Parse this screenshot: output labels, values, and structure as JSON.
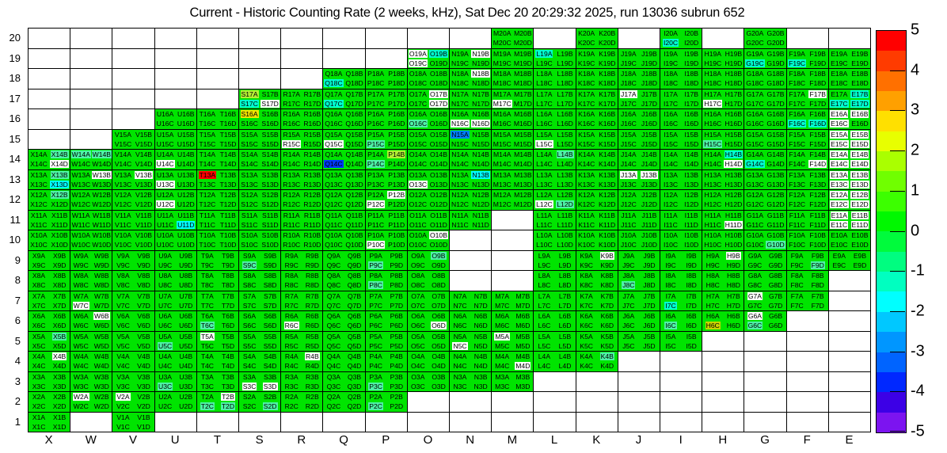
{
  "title": "Current - Historic Counting Rate (2 weeks, kHz), Sat Dec 20 20:29:32 2025, run 13036 subrun 652",
  "chart_data": {
    "type": "heatmap",
    "title": "Current - Historic Counting Rate (2 weeks, kHz), Sat Dec 20 20:29:32 2025, run 13036 subrun 652",
    "xlabel": "",
    "ylabel": "",
    "value_scale": {
      "min": -5,
      "max": 5,
      "units": "kHz difference"
    },
    "columns": [
      "X",
      "W",
      "V",
      "U",
      "T",
      "S",
      "R",
      "Q",
      "P",
      "O",
      "N",
      "M",
      "L",
      "K",
      "J",
      "I",
      "H",
      "G",
      "F",
      "E"
    ],
    "suffixes": [
      "A",
      "B",
      "C",
      "D"
    ],
    "y_tick_labels": [
      "20",
      "19",
      "18",
      "17",
      "16",
      "15",
      "14",
      "13",
      "12",
      "11",
      "10",
      "9",
      "8",
      "7",
      "6",
      "5",
      "4",
      "3",
      "2",
      "1"
    ],
    "rows": [
      {
        "n": 20,
        "cols": [
          "M",
          "K",
          "I",
          "G"
        ]
      },
      {
        "n": 19,
        "cols": [
          "O",
          "N",
          "M",
          "L",
          "K",
          "J",
          "I",
          "H",
          "G",
          "F",
          "E"
        ]
      },
      {
        "n": 18,
        "cols": [
          "Q",
          "P",
          "O",
          "N",
          "M",
          "L",
          "K",
          "J",
          "I",
          "H",
          "G",
          "F",
          "E"
        ]
      },
      {
        "n": 17,
        "cols": [
          "S",
          "R",
          "Q",
          "P",
          "O",
          "N",
          "M",
          "L",
          "K",
          "J",
          "I",
          "H",
          "G",
          "F",
          "E"
        ]
      },
      {
        "n": 16,
        "cols": [
          "U",
          "T",
          "S",
          "R",
          "Q",
          "P",
          "O",
          "N",
          "M",
          "L",
          "K",
          "J",
          "I",
          "H",
          "G",
          "F",
          "E"
        ]
      },
      {
        "n": 15,
        "cols": [
          "V",
          "U",
          "T",
          "S",
          "R",
          "Q",
          "P",
          "O",
          "N",
          "M",
          "L",
          "K",
          "J",
          "I",
          "H",
          "G",
          "F",
          "E"
        ]
      },
      {
        "n": 14,
        "cols": [
          "X",
          "W",
          "V",
          "U",
          "T",
          "S",
          "R",
          "Q",
          "P",
          "O",
          "N",
          "M",
          "L",
          "K",
          "J",
          "I",
          "H",
          "G",
          "F",
          "E"
        ]
      },
      {
        "n": 13,
        "cols": [
          "X",
          "W",
          "V",
          "U",
          "T",
          "S",
          "R",
          "Q",
          "P",
          "O",
          "N",
          "M",
          "L",
          "K",
          "J",
          "I",
          "H",
          "G",
          "F",
          "E"
        ]
      },
      {
        "n": 12,
        "cols": [
          "X",
          "W",
          "V",
          "U",
          "T",
          "S",
          "R",
          "Q",
          "P",
          "O",
          "N",
          "M",
          "L",
          "K",
          "J",
          "I",
          "H",
          "G",
          "F",
          "E"
        ]
      },
      {
        "n": 11,
        "cols": [
          "X",
          "W",
          "V",
          "U",
          "T",
          "S",
          "R",
          "Q",
          "P",
          "O",
          "N",
          "L",
          "K",
          "J",
          "I",
          "H",
          "G",
          "F",
          "E"
        ]
      },
      {
        "n": 10,
        "cols": [
          "X",
          "W",
          "V",
          "U",
          "T",
          "S",
          "R",
          "Q",
          "P",
          "O",
          "L",
          "K",
          "J",
          "I",
          "H",
          "G",
          "F",
          "E"
        ]
      },
      {
        "n": 9,
        "cols": [
          "X",
          "W",
          "V",
          "U",
          "T",
          "S",
          "R",
          "Q",
          "P",
          "O",
          "L",
          "K",
          "J",
          "I",
          "H",
          "G",
          "F",
          "E"
        ]
      },
      {
        "n": 8,
        "cols": [
          "X",
          "W",
          "V",
          "U",
          "T",
          "S",
          "R",
          "Q",
          "P",
          "O",
          "L",
          "K",
          "J",
          "I",
          "H",
          "G",
          "F"
        ]
      },
      {
        "n": 7,
        "cols": [
          "X",
          "W",
          "V",
          "U",
          "T",
          "S",
          "R",
          "Q",
          "P",
          "O",
          "N",
          "M",
          "L",
          "K",
          "J",
          "I",
          "H",
          "G",
          "F"
        ]
      },
      {
        "n": 6,
        "cols": [
          "X",
          "W",
          "V",
          "U",
          "T",
          "S",
          "R",
          "Q",
          "P",
          "O",
          "N",
          "M",
          "L",
          "K",
          "J",
          "I",
          "H",
          "G"
        ]
      },
      {
        "n": 5,
        "cols": [
          "X",
          "W",
          "V",
          "U",
          "T",
          "S",
          "R",
          "Q",
          "P",
          "O",
          "N",
          "M",
          "L",
          "K",
          "J",
          "I"
        ]
      },
      {
        "n": 4,
        "cols": [
          "X",
          "W",
          "V",
          "U",
          "T",
          "S",
          "R",
          "Q",
          "P",
          "O",
          "N",
          "M",
          "L",
          "K"
        ]
      },
      {
        "n": 3,
        "cols": [
          "X",
          "W",
          "V",
          "U",
          "T",
          "S",
          "R",
          "Q",
          "P",
          "O",
          "N",
          "M"
        ]
      },
      {
        "n": 2,
        "cols": [
          "X",
          "W",
          "V",
          "U",
          "T",
          "S",
          "R",
          "Q",
          "P"
        ]
      },
      {
        "n": 1,
        "cols": [
          "X",
          "V"
        ]
      }
    ],
    "palette": {
      "g": "#00E400",
      "w": "#FFFFFF",
      "t": "#4DF2A6",
      "c": "#00FFFF",
      "T": "#00FFD0",
      "y": "#EFE400",
      "o": "#C8D400",
      "Y": "#B2EE33",
      "r": "#FF0000",
      "b": "#0080FF",
      "B": "#0038FF"
    },
    "overrides": {
      "S17D": "w",
      "O19A": "w",
      "O19C": "w",
      "N19B": "w",
      "N18B": "w",
      "O17B": "w",
      "O17D": "w",
      "M17C": "w",
      "J17A": "w",
      "H17C": "w",
      "F17B": "w",
      "N16C": "w",
      "N16D": "w",
      "E16A": "w",
      "E16B": "w",
      "E16C": "w",
      "R15C": "w",
      "Q15C": "w",
      "L15C": "w",
      "E15A": "w",
      "E15B": "w",
      "E15C": "w",
      "E15D": "w",
      "X14D": "w",
      "U14C": "w",
      "H14D": "w",
      "F14D": "w",
      "E14A": "w",
      "E14B": "w",
      "E14C": "w",
      "E14D": "w",
      "W13B": "w",
      "V13B": "w",
      "U13C": "w",
      "O13C": "w",
      "J13A": "w",
      "J13B": "w",
      "E13A": "w",
      "E13B": "w",
      "E13C": "w",
      "E13D": "w",
      "P12B": "w",
      "P12C": "w",
      "U12C": "w",
      "L12C": "w",
      "E12A": "w",
      "E12B": "w",
      "E12C": "w",
      "E12D": "w",
      "H11D": "w",
      "E11A": "w",
      "E11B": "w",
      "E11C": "w",
      "E11D": "w",
      "O10B": "w",
      "P10C": "w",
      "K9B": "w",
      "H9B": "w",
      "W7C": "w",
      "G7A": "w",
      "W6B": "w",
      "R6C": "w",
      "O6D": "w",
      "G6A": "w",
      "T5A": "w",
      "N5C": "w",
      "M5A": "w",
      "X4B": "w",
      "R4B": "w",
      "M4D": "w",
      "S3C": "w",
      "S3D": "w",
      "W2A": "w",
      "V2A": "w",
      "T2B": "w",
      "X13D": "c",
      "U11D": "c",
      "N13B": "c",
      "S17C": "T",
      "Q18C": "T",
      "Q17C": "T",
      "L19A": "T",
      "O19B": "T",
      "I20C": "T",
      "G19C": "T",
      "F19C": "T",
      "E17B": "T",
      "E17C": "T",
      "E17D": "T",
      "F16C": "T",
      "F16D": "T",
      "H14B": "T",
      "G14C": "T",
      "I7C": "T",
      "X14B": "t",
      "W14A": "t",
      "W14B": "t",
      "X13B": "t",
      "X12B": "t",
      "L14B": "t",
      "P14C": "t",
      "P15C": "t",
      "H15C": "t",
      "O16C": "t",
      "L12D": "t",
      "S9C": "t",
      "P9C": "t",
      "O9B": "t",
      "P8C": "t",
      "J8C": "t",
      "G10D": "t",
      "F9D": "t",
      "T6C": "t",
      "I6C": "t",
      "G6C": "t",
      "U5C": "t",
      "X5B": "t",
      "K4B": "t",
      "U3C": "t",
      "P3C": "t",
      "T2C": "t",
      "T2D": "t",
      "S2D": "t",
      "P2C": "t",
      "S16A": "y",
      "H6C": "o",
      "P14B": "Y",
      "S17A": "Y",
      "T13A": "r",
      "N15A": "b",
      "Q14C": "B"
    },
    "colorbar": {
      "tick_labels": [
        "5",
        "4",
        "3",
        "2",
        "1",
        "0",
        "-1",
        "-2",
        "-3",
        "-4",
        "-5"
      ],
      "bands_top_to_bottom": [
        "#FF0000",
        "#FF3B00",
        "#FF7000",
        "#FFA000",
        "#FFE000",
        "#E8FF00",
        "#AAFF00",
        "#70FF00",
        "#3CFF00",
        "#00F800",
        "#00FB3C",
        "#00FD80",
        "#00FFC0",
        "#00FFFF",
        "#00C8FF",
        "#0096FF",
        "#0064FF",
        "#0028FF",
        "#3C00E6",
        "#7C14F0"
      ]
    }
  }
}
